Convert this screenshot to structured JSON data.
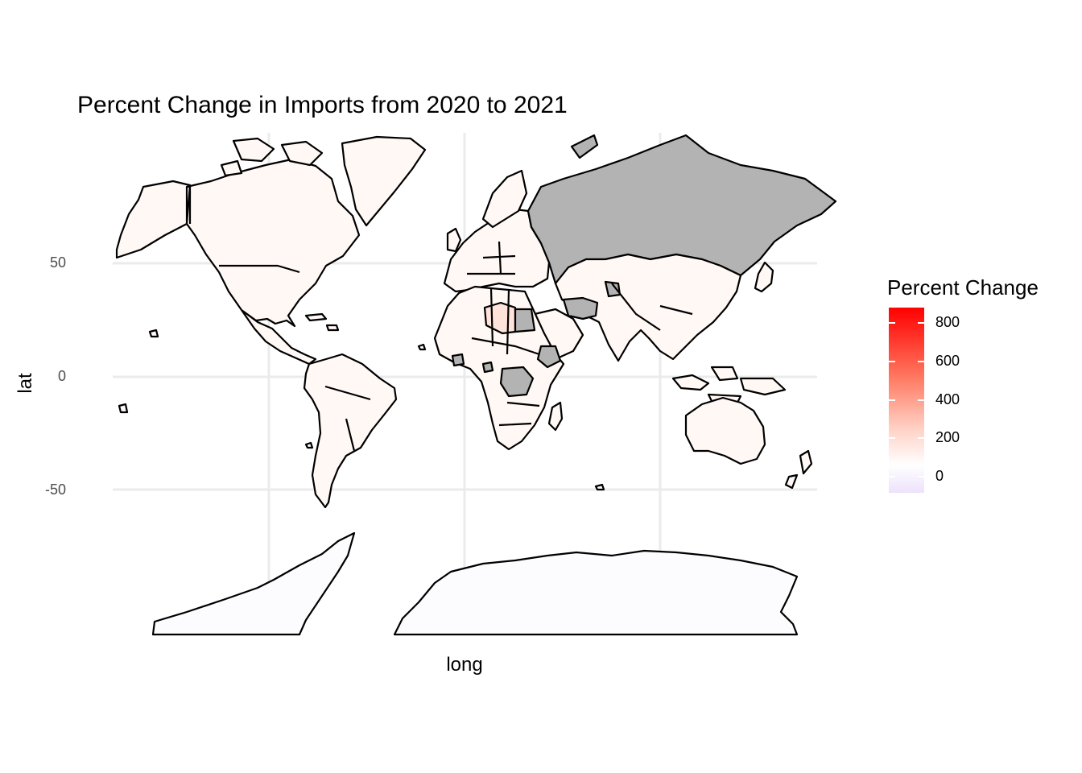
{
  "title": "Percent Change in Imports from 2020 to 2021",
  "xlabel": "long",
  "ylabel": "lat",
  "y_ticks": [
    "50",
    "0",
    "-50"
  ],
  "legend": {
    "title": "Percent Change",
    "ticks": [
      "800",
      "600",
      "400",
      "200",
      "0"
    ],
    "low_color": "#ede2fb",
    "mid_color": "#ffffff",
    "high_color": "#ff0000",
    "na_color": "#b3b3b3"
  },
  "colors": {
    "grid": "#ebebeb",
    "border": "#000000",
    "neutral_fill": "#fff8f5",
    "libya_fill": "#ffe3db",
    "antarctica_fill": "#fcfcff"
  }
}
